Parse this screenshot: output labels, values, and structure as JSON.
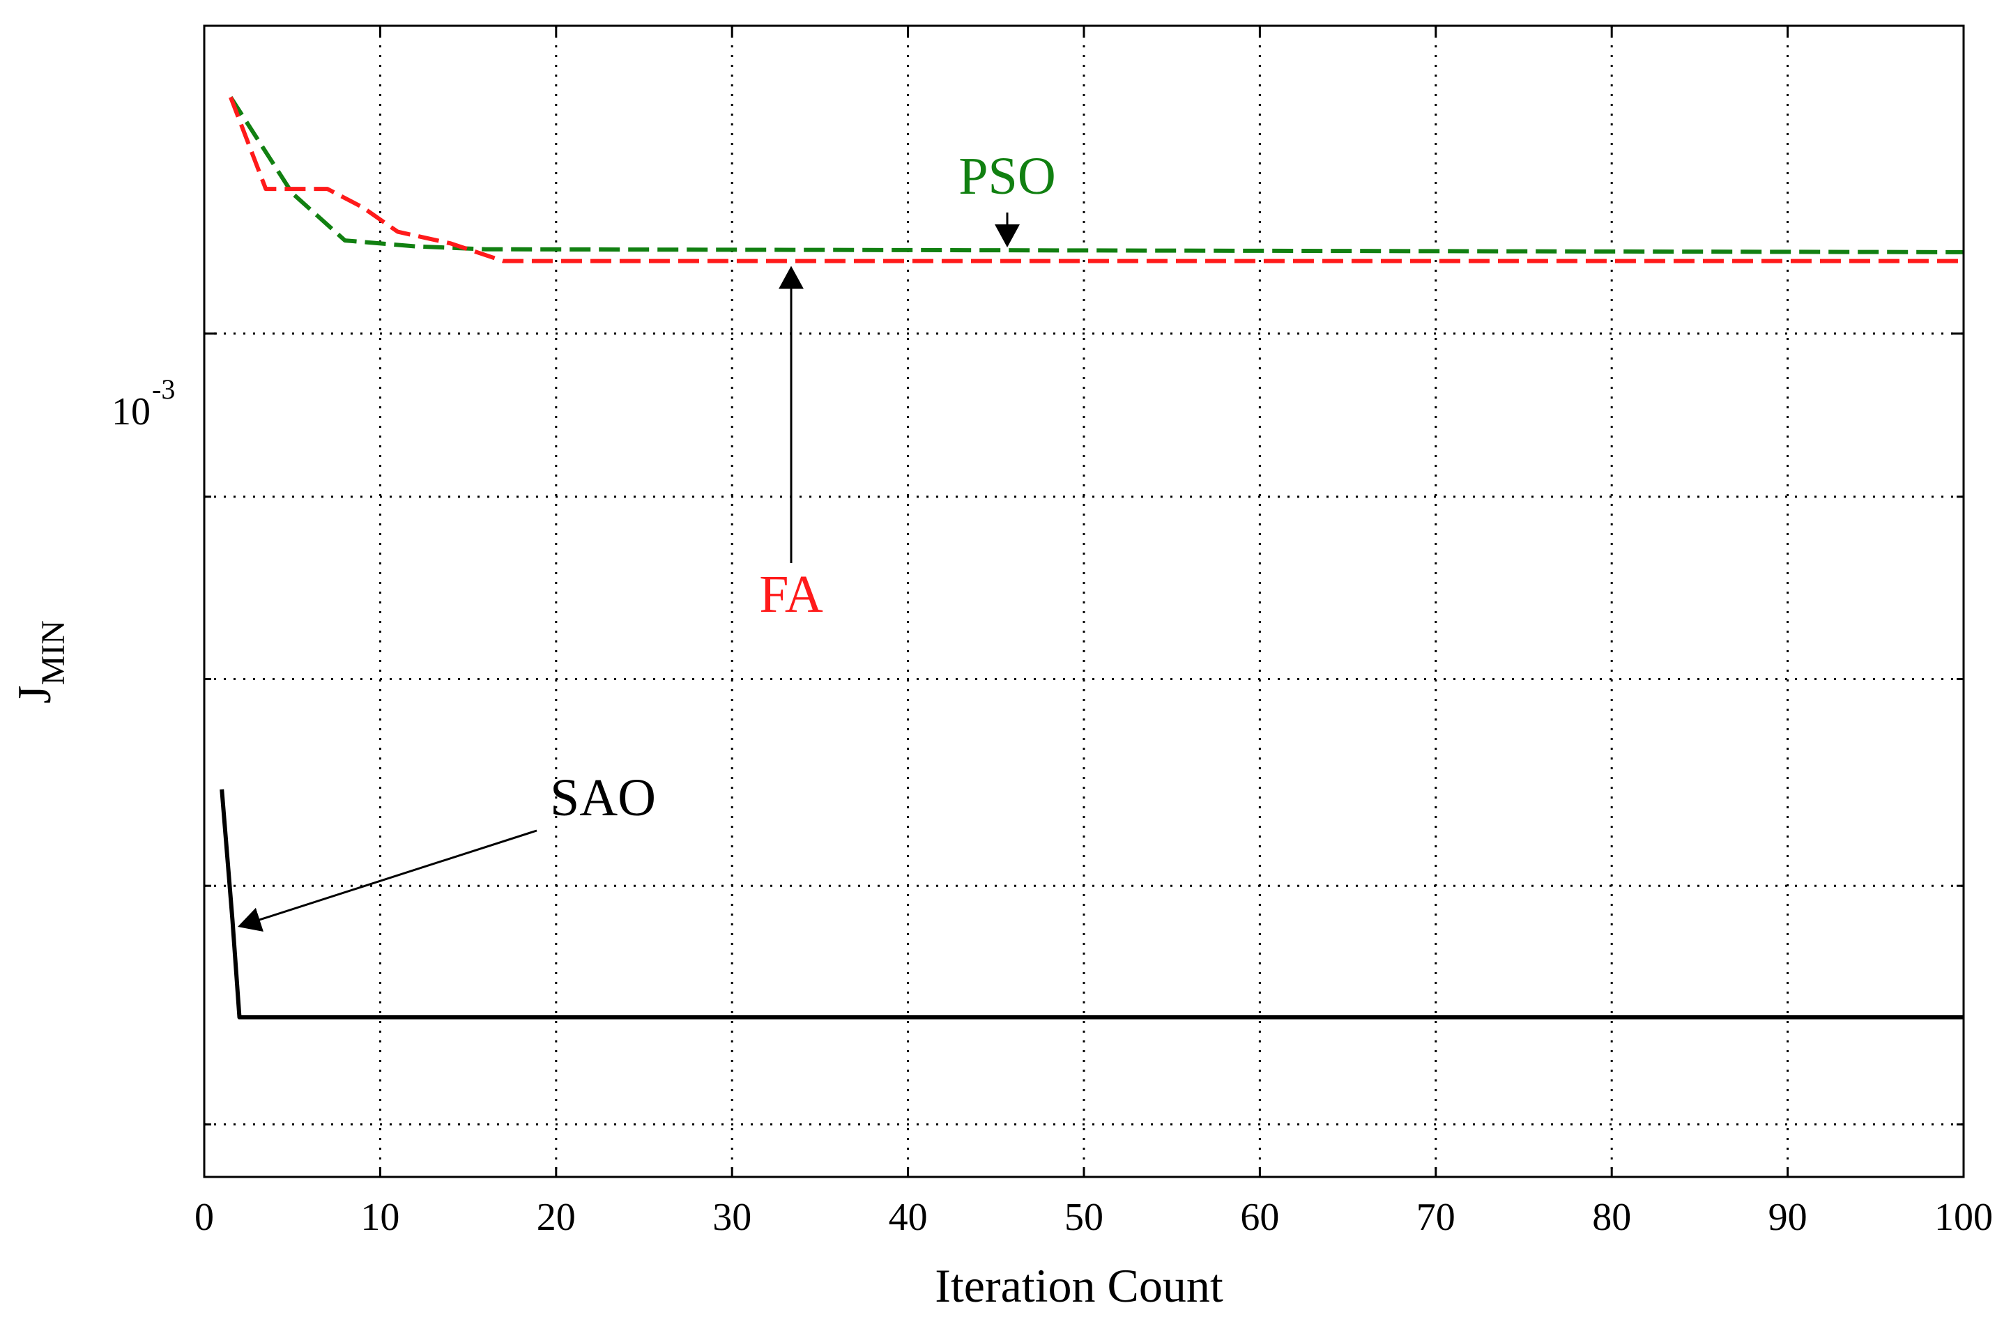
{
  "chart_data": {
    "type": "line",
    "title": "",
    "xlabel": "Iteration Count",
    "ylabel": "J",
    "ylabel_subscript": "MIN",
    "xlim": [
      0,
      100
    ],
    "ylim": [
      0.00058,
      0.00122
    ],
    "yscale": "log",
    "grid": true,
    "x_ticks": [
      0,
      10,
      20,
      30,
      40,
      50,
      60,
      70,
      80,
      90,
      100
    ],
    "y_tick_label": {
      "base": "10",
      "exponent": "-3",
      "value": 0.001
    },
    "y_minor_ticks": [
      0.0006,
      0.0007,
      0.0008,
      0.0009
    ],
    "series": [
      {
        "name": "PSO",
        "color": "#118011",
        "dash": "dashed",
        "x": [
          1.5,
          5,
          8,
          12,
          16,
          100
        ],
        "y": [
          0.001165,
          0.001095,
          0.001062,
          0.001058,
          0.001056,
          0.001054
        ]
      },
      {
        "name": "FA",
        "color": "#ff1a1a",
        "dash": "dashed",
        "x": [
          1.5,
          3.5,
          7,
          9,
          11,
          14,
          17,
          100
        ],
        "y": [
          0.001165,
          0.001098,
          0.001098,
          0.001085,
          0.001068,
          0.00106,
          0.001048,
          0.001048
        ]
      },
      {
        "name": "SAO",
        "color": "#000000",
        "dash": "solid",
        "x": [
          1,
          1.6,
          2,
          100
        ],
        "y": [
          0.000745,
          0.000685,
          0.000643,
          0.000643
        ]
      }
    ],
    "annotations": [
      {
        "text": "PSO",
        "color": "#118011",
        "target_x": 46,
        "target_y": 0.001054
      },
      {
        "text": "FA",
        "color": "#ff1a1a",
        "target_x": 33.5,
        "target_y": 0.001048
      },
      {
        "text": "SAO",
        "color": "#000000",
        "target_x": 1.7,
        "target_y": 0.000682
      }
    ]
  }
}
